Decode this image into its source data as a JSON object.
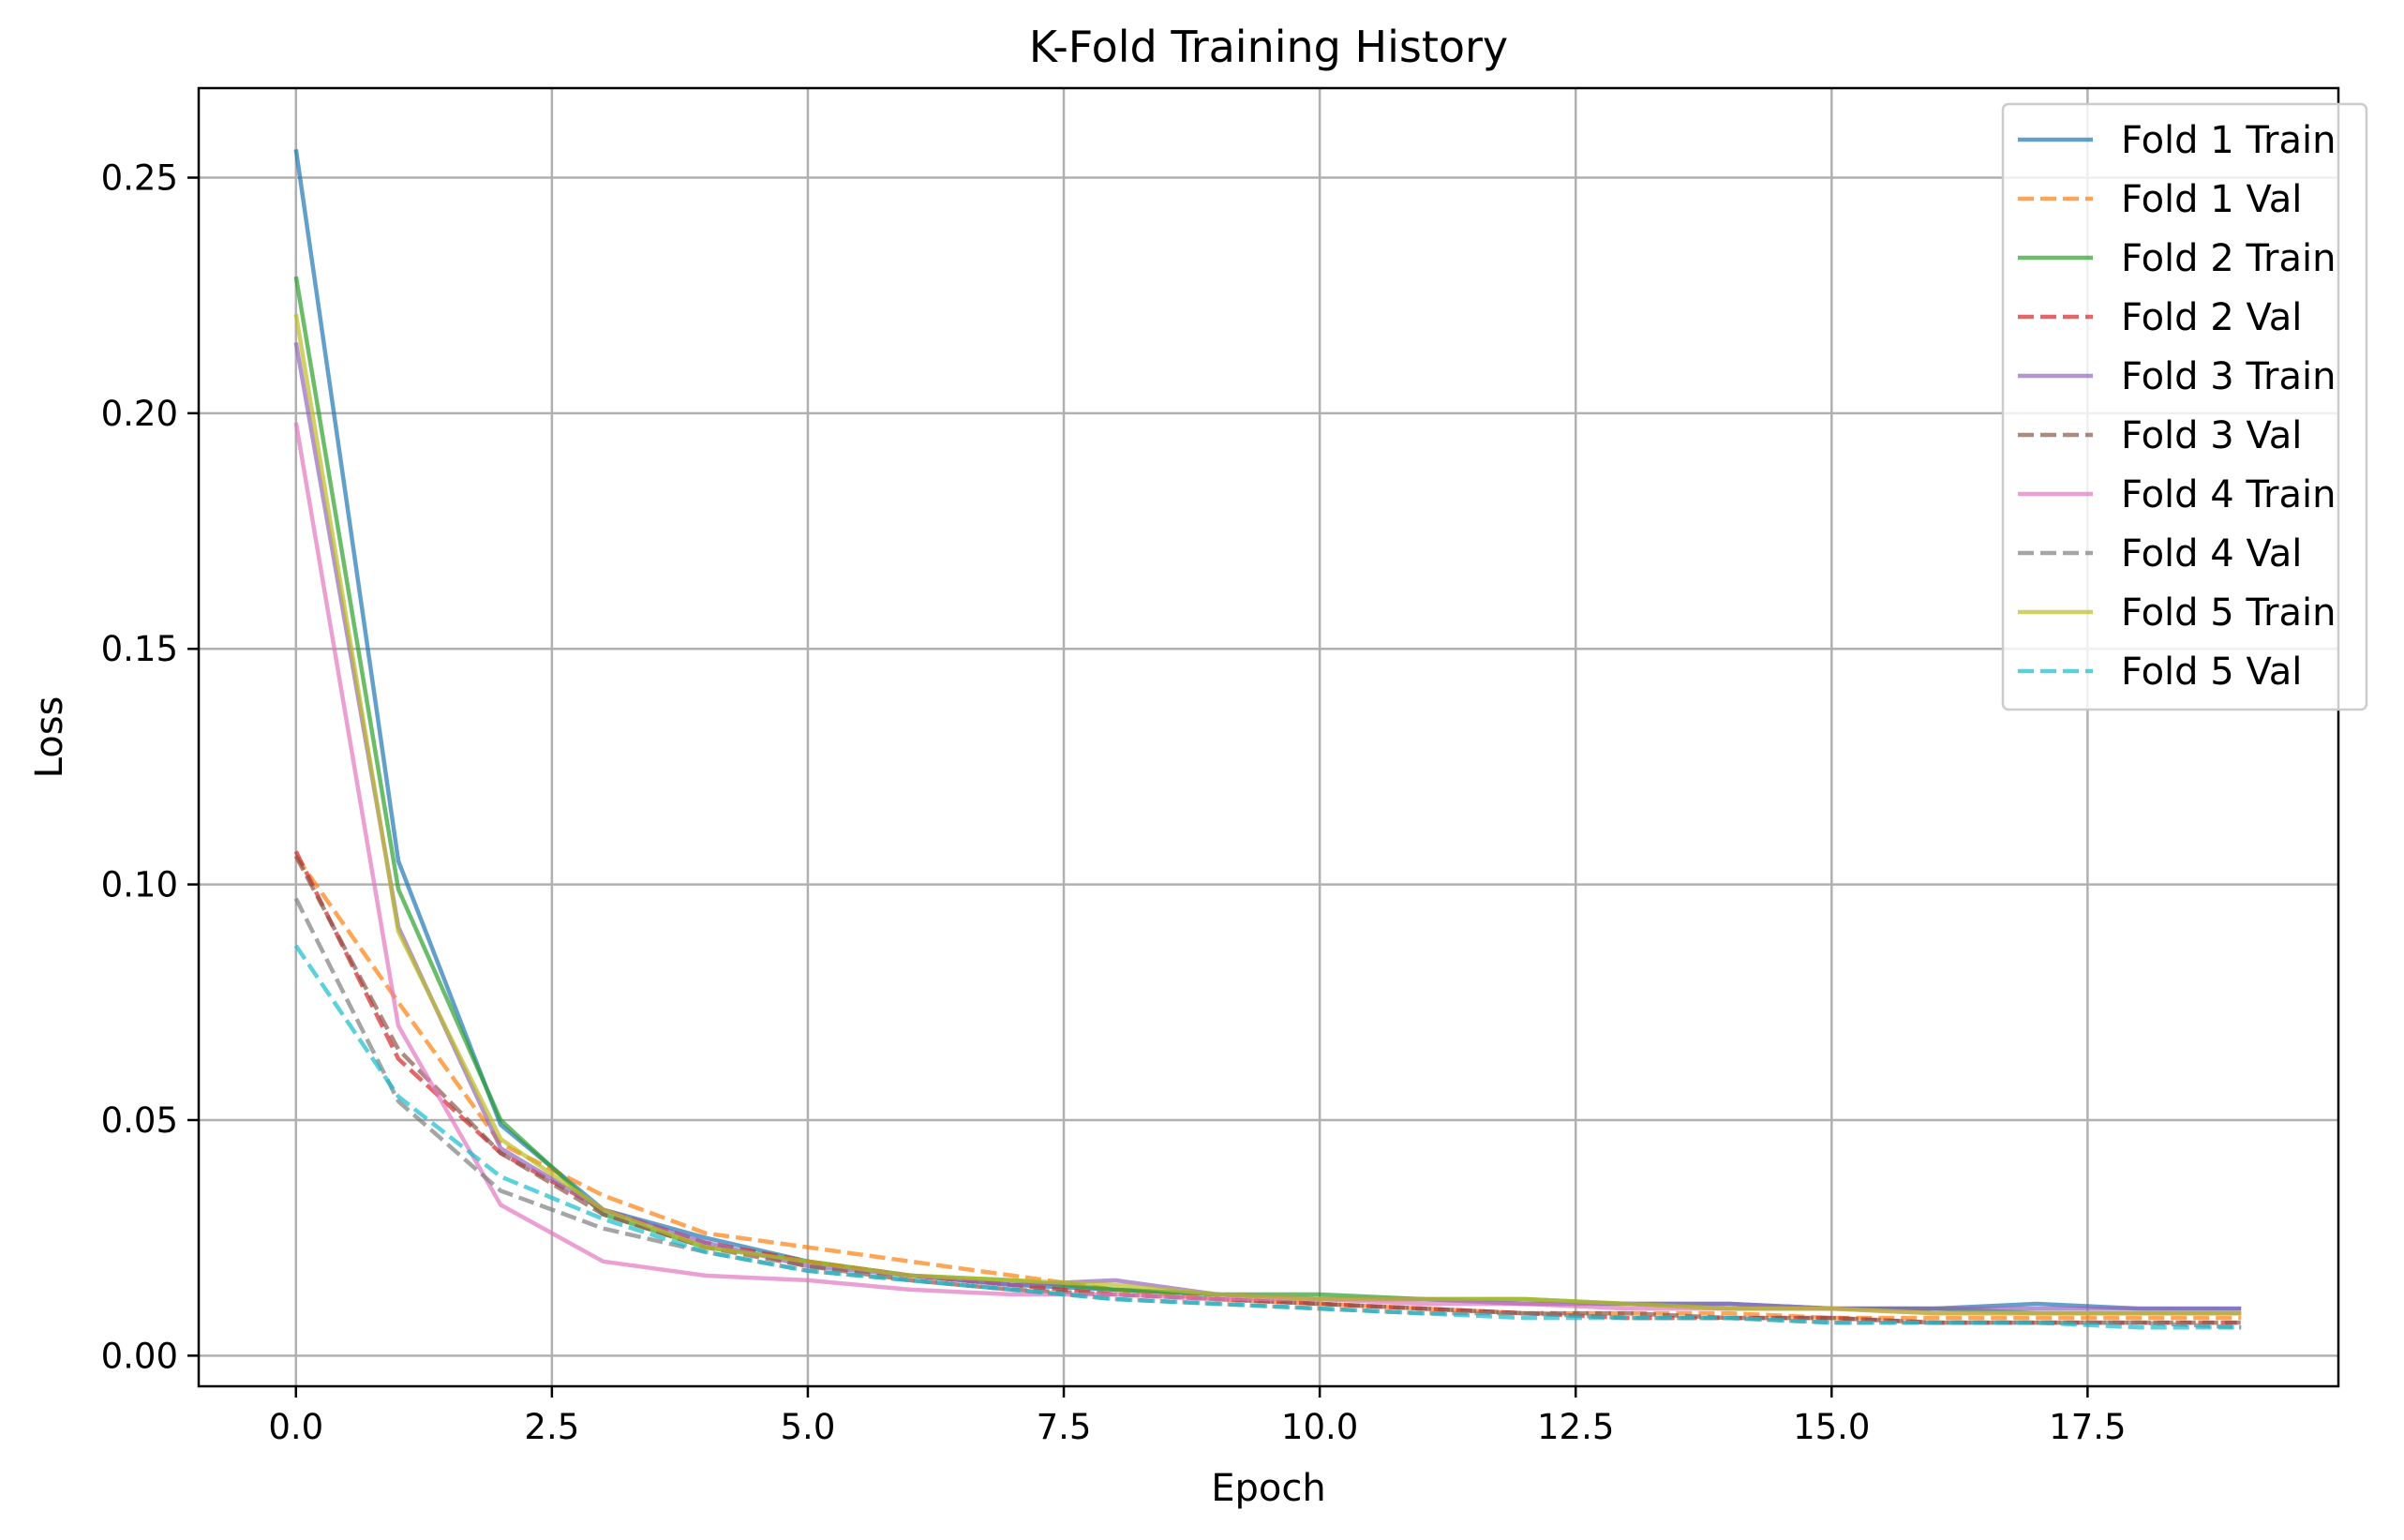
{
  "chart_data": {
    "type": "line",
    "title": "K-Fold Training History",
    "xlabel": "Epoch",
    "ylabel": "Loss",
    "xlim": [
      -0.95,
      19.95
    ],
    "ylim": [
      -0.0065,
      0.269
    ],
    "xticks": [
      0.0,
      2.5,
      5.0,
      7.5,
      10.0,
      12.5,
      15.0,
      17.5
    ],
    "xtick_labels": [
      "0.0",
      "2.5",
      "5.0",
      "7.5",
      "10.0",
      "12.5",
      "15.0",
      "17.5"
    ],
    "yticks": [
      0.0,
      0.05,
      0.1,
      0.15,
      0.2,
      0.25
    ],
    "ytick_labels": [
      "0.00",
      "0.05",
      "0.10",
      "0.15",
      "0.20",
      "0.25"
    ],
    "grid": true,
    "legend_position": "top-right",
    "x": [
      0,
      1,
      2,
      3,
      4,
      5,
      6,
      7,
      8,
      9,
      10,
      11,
      12,
      13,
      14,
      15,
      16,
      17,
      18,
      19
    ],
    "series": [
      {
        "name": "Fold 1 Train",
        "color": "#1f77b4",
        "dash": "solid",
        "values": [
          0.256,
          0.105,
          0.049,
          0.031,
          0.025,
          0.02,
          0.017,
          0.015,
          0.014,
          0.013,
          0.012,
          0.012,
          0.011,
          0.011,
          0.011,
          0.01,
          0.01,
          0.011,
          0.01,
          0.01
        ]
      },
      {
        "name": "Fold 1 Val",
        "color": "#ff7f0e",
        "dash": "dashed",
        "values": [
          0.106,
          0.075,
          0.045,
          0.034,
          0.026,
          0.023,
          0.02,
          0.017,
          0.014,
          0.012,
          0.011,
          0.01,
          0.009,
          0.009,
          0.009,
          0.008,
          0.008,
          0.008,
          0.008,
          0.008
        ]
      },
      {
        "name": "Fold 2 Train",
        "color": "#2ca02c",
        "dash": "solid",
        "values": [
          0.229,
          0.099,
          0.05,
          0.03,
          0.023,
          0.02,
          0.017,
          0.016,
          0.014,
          0.013,
          0.013,
          0.012,
          0.012,
          0.011,
          0.01,
          0.01,
          0.01,
          0.009,
          0.009,
          0.009
        ]
      },
      {
        "name": "Fold 2 Val",
        "color": "#d62728",
        "dash": "dashed",
        "values": [
          0.107,
          0.063,
          0.043,
          0.031,
          0.024,
          0.02,
          0.017,
          0.015,
          0.013,
          0.012,
          0.011,
          0.01,
          0.009,
          0.008,
          0.008,
          0.008,
          0.007,
          0.007,
          0.007,
          0.007
        ]
      },
      {
        "name": "Fold 3 Train",
        "color": "#9467bd",
        "dash": "solid",
        "values": [
          0.215,
          0.091,
          0.044,
          0.031,
          0.024,
          0.019,
          0.017,
          0.015,
          0.016,
          0.013,
          0.012,
          0.012,
          0.011,
          0.011,
          0.011,
          0.01,
          0.01,
          0.01,
          0.01,
          0.01
        ]
      },
      {
        "name": "Fold 3 Val",
        "color": "#8c564b",
        "dash": "dashed",
        "values": [
          0.106,
          0.065,
          0.043,
          0.03,
          0.023,
          0.019,
          0.016,
          0.014,
          0.013,
          0.012,
          0.011,
          0.01,
          0.009,
          0.009,
          0.008,
          0.008,
          0.007,
          0.007,
          0.007,
          0.007
        ]
      },
      {
        "name": "Fold 4 Train",
        "color": "#e377c2",
        "dash": "solid",
        "values": [
          0.198,
          0.07,
          0.032,
          0.02,
          0.017,
          0.016,
          0.014,
          0.013,
          0.013,
          0.012,
          0.012,
          0.011,
          0.011,
          0.01,
          0.01,
          0.01,
          0.009,
          0.009,
          0.009,
          0.009
        ]
      },
      {
        "name": "Fold 4 Val",
        "color": "#7f7f7f",
        "dash": "dashed",
        "values": [
          0.097,
          0.054,
          0.035,
          0.027,
          0.022,
          0.018,
          0.016,
          0.014,
          0.012,
          0.011,
          0.01,
          0.009,
          0.009,
          0.008,
          0.008,
          0.007,
          0.007,
          0.007,
          0.007,
          0.006
        ]
      },
      {
        "name": "Fold 5 Train",
        "color": "#bcbd22",
        "dash": "solid",
        "values": [
          0.221,
          0.09,
          0.046,
          0.031,
          0.023,
          0.02,
          0.017,
          0.016,
          0.015,
          0.013,
          0.012,
          0.012,
          0.012,
          0.011,
          0.01,
          0.01,
          0.009,
          0.009,
          0.009,
          0.009
        ]
      },
      {
        "name": "Fold 5 Val",
        "color": "#17becf",
        "dash": "dashed",
        "values": [
          0.087,
          0.055,
          0.038,
          0.029,
          0.022,
          0.018,
          0.016,
          0.014,
          0.012,
          0.011,
          0.01,
          0.009,
          0.008,
          0.008,
          0.008,
          0.007,
          0.007,
          0.007,
          0.006,
          0.006
        ]
      }
    ]
  }
}
